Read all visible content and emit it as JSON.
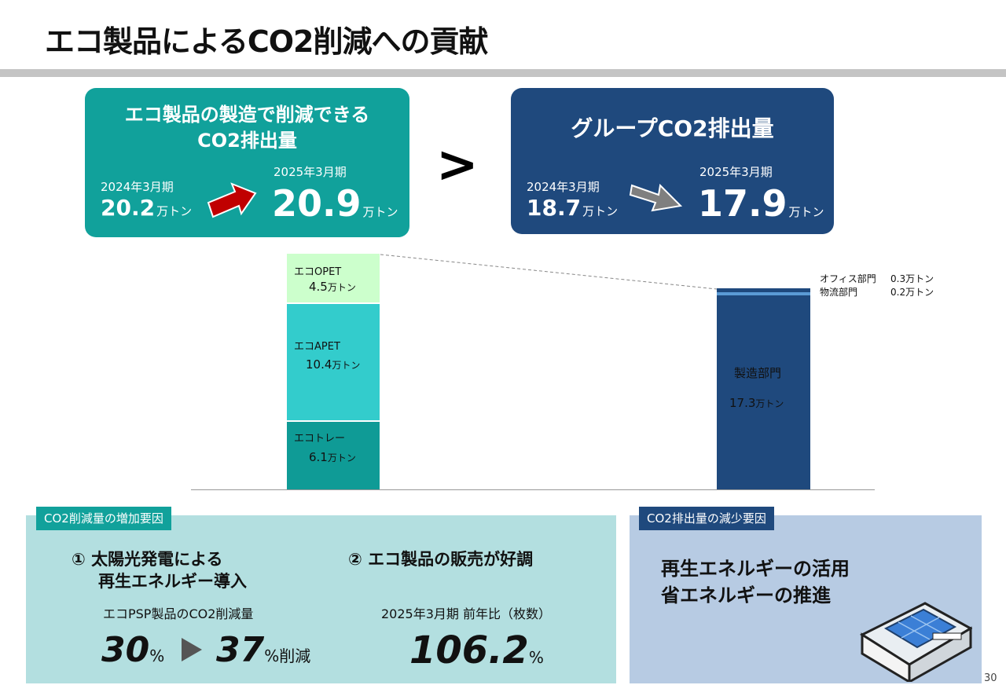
{
  "title": "エコ製品によるCO2削減への貢献",
  "left_box": {
    "heading_line1": "エコ製品の製造で削減できる",
    "heading_line2": "CO2排出量",
    "prev_year": "2024年3月期",
    "prev_value": "20.2",
    "cur_year": "2025年3月期",
    "cur_value": "20.9",
    "unit": "万トン"
  },
  "comparison": ">",
  "right_box": {
    "heading": "グループCO2排出量",
    "prev_year": "2024年3月期",
    "prev_value": "18.7",
    "cur_year": "2025年3月期",
    "cur_value": "17.9",
    "unit": "万トン"
  },
  "chart": {
    "left_stack": [
      {
        "label": "エコトレー",
        "value": "6.1",
        "unit": "万トン",
        "color": "#0f9b96"
      },
      {
        "label": "エコAPET",
        "value": "10.4",
        "unit": "万トン",
        "color": "#33cccc"
      },
      {
        "label": "エコOPET",
        "value": "4.5",
        "unit": "万トン",
        "color": "#ccffcc"
      }
    ],
    "right_stack": [
      {
        "label": "製造部門",
        "value": "17.3",
        "unit": "万トン",
        "color": "#1f497d"
      },
      {
        "label": "物流部門",
        "value": "0.2万トン",
        "color": "#5b9bd5"
      },
      {
        "label": "オフィス部門",
        "value": "0.3万トン",
        "color": "#1f497d"
      }
    ]
  },
  "increase_panel": {
    "tag": "CO2削減量の増加要因",
    "item1_line1": "① 太陽光発電による",
    "item1_line2": "再生エネルギー導入",
    "item1_sub": "エコPSP製品のCO2削減量",
    "item1_from": "30",
    "item1_to": "37",
    "pct": "%",
    "item1_suffix": "%削減",
    "item2_heading": "② エコ製品の販売が好調",
    "item2_sub": "2025年3月期 前年比（枚数）",
    "item2_value": "106.2"
  },
  "decrease_panel": {
    "tag": "CO2排出量の減少要因",
    "line1": "再生エネルギーの活用",
    "line2": "省エネルギーの推進"
  },
  "page_number": "30",
  "colors": {
    "teal": "#11a19b",
    "navy": "#1f497d",
    "arrow_red": "#c00000",
    "arrow_gray": "#7f7f7f"
  }
}
